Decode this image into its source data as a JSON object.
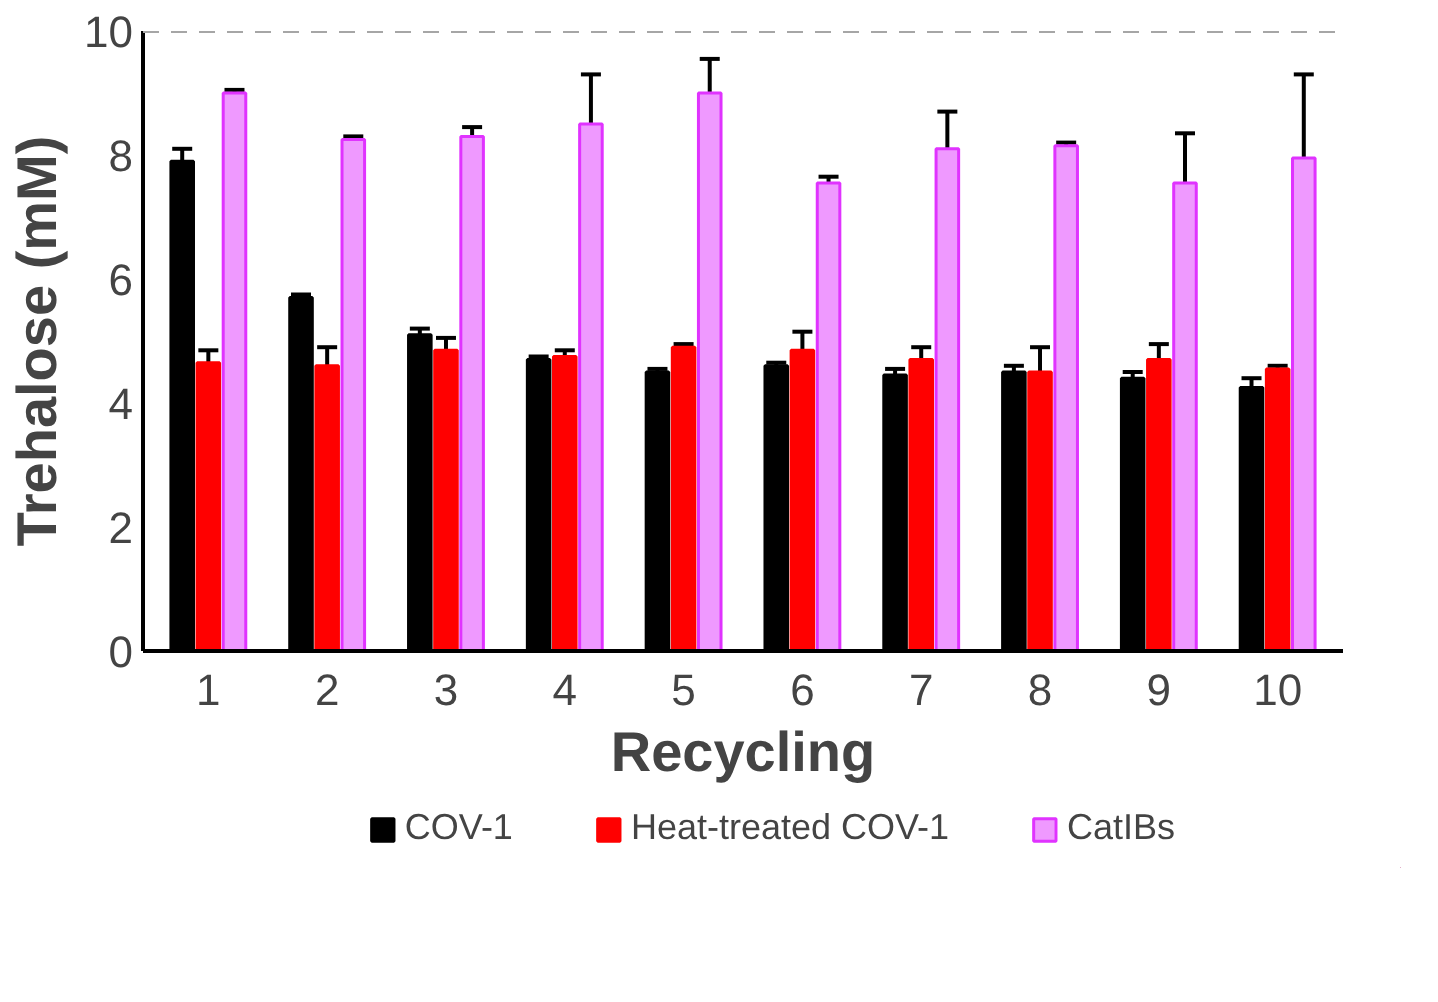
{
  "chart_data": {
    "type": "bar",
    "xlabel": "Recycling",
    "ylabel": "Trehalose (mM)",
    "categories": [
      "1",
      "2",
      "3",
      "4",
      "5",
      "6",
      "7",
      "8",
      "9",
      "10"
    ],
    "series": [
      {
        "name": "COV-1",
        "color": "#000000",
        "values": [
          7.9,
          5.7,
          5.1,
          4.7,
          4.5,
          4.6,
          4.45,
          4.5,
          4.4,
          4.25
        ],
        "errors": [
          [
            7.9,
            8.1
          ],
          [
            5.7,
            5.75
          ],
          [
            5.1,
            5.2
          ],
          [
            4.7,
            4.75
          ],
          [
            4.5,
            4.55
          ],
          [
            4.6,
            4.65
          ],
          [
            4.45,
            4.55
          ],
          [
            4.5,
            4.6
          ],
          [
            4.4,
            4.5
          ],
          [
            4.25,
            4.4
          ]
        ]
      },
      {
        "name": "Heat-treated COV-1",
        "color": "#ff0000",
        "values": [
          4.65,
          4.6,
          4.85,
          4.75,
          4.9,
          4.85,
          4.7,
          4.5,
          4.7,
          4.55
        ],
        "errors": [
          [
            4.65,
            4.85
          ],
          [
            4.6,
            4.9
          ],
          [
            4.85,
            5.05
          ],
          [
            4.75,
            4.85
          ],
          [
            4.9,
            4.95
          ],
          [
            4.85,
            5.15
          ],
          [
            4.7,
            4.9
          ],
          [
            4.5,
            4.9
          ],
          [
            4.7,
            4.95
          ],
          [
            4.55,
            4.6
          ]
        ]
      },
      {
        "name": "CatIBs",
        "color": "#e033ff",
        "values": [
          9.0,
          8.25,
          8.3,
          8.5,
          9.0,
          7.55,
          8.1,
          8.15,
          7.55,
          7.95
        ],
        "errors": [
          [
            9.0,
            9.05
          ],
          [
            8.25,
            8.3
          ],
          [
            8.3,
            8.45
          ],
          [
            8.5,
            9.3
          ],
          [
            9.0,
            9.55
          ],
          [
            7.55,
            7.65
          ],
          [
            8.1,
            8.7
          ],
          [
            8.15,
            8.2
          ],
          [
            7.55,
            8.35
          ],
          [
            7.95,
            9.3
          ]
        ]
      }
    ],
    "ylim": [
      0,
      10
    ],
    "yticks": [
      0,
      2,
      4,
      6,
      8,
      10
    ],
    "ref_lines": [
      {
        "axis": "y",
        "value": 10,
        "color": "#a6a6a6",
        "line_style": "dashed"
      }
    ],
    "grid": false,
    "legend": "bottom"
  }
}
